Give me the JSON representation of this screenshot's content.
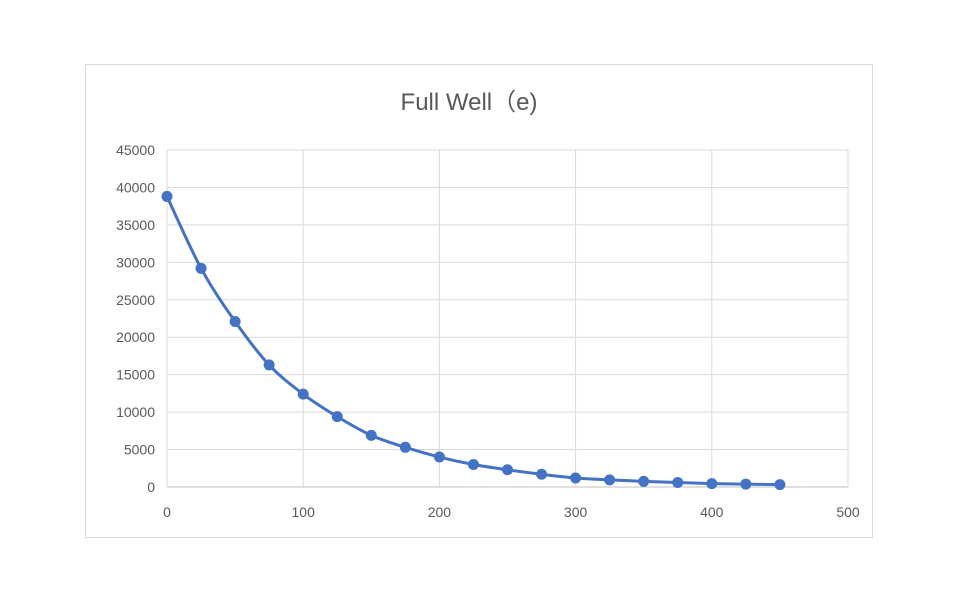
{
  "chart_data": {
    "type": "scatter",
    "title": "Full Well（e)",
    "xlabel": "",
    "ylabel": "",
    "xlim": [
      0,
      500
    ],
    "ylim": [
      0,
      45000
    ],
    "x_ticks": [
      0,
      100,
      200,
      300,
      400,
      500
    ],
    "y_ticks": [
      0,
      5000,
      10000,
      15000,
      20000,
      25000,
      30000,
      35000,
      40000,
      45000
    ],
    "grid": true,
    "legend": "none",
    "series": [
      {
        "color": "#4472C4",
        "marker": "circle",
        "smooth": true,
        "points": [
          {
            "x": 0,
            "y": 38800
          },
          {
            "x": 25,
            "y": 29200
          },
          {
            "x": 50,
            "y": 22100
          },
          {
            "x": 75,
            "y": 16300
          },
          {
            "x": 100,
            "y": 12400
          },
          {
            "x": 125,
            "y": 9400
          },
          {
            "x": 150,
            "y": 6900
          },
          {
            "x": 175,
            "y": 5300
          },
          {
            "x": 200,
            "y": 4000
          },
          {
            "x": 225,
            "y": 3000
          },
          {
            "x": 250,
            "y": 2300
          },
          {
            "x": 275,
            "y": 1700
          },
          {
            "x": 300,
            "y": 1200
          },
          {
            "x": 325,
            "y": 950
          },
          {
            "x": 350,
            "y": 750
          },
          {
            "x": 375,
            "y": 600
          },
          {
            "x": 400,
            "y": 450
          },
          {
            "x": 425,
            "y": 380
          },
          {
            "x": 450,
            "y": 320
          }
        ]
      }
    ]
  }
}
